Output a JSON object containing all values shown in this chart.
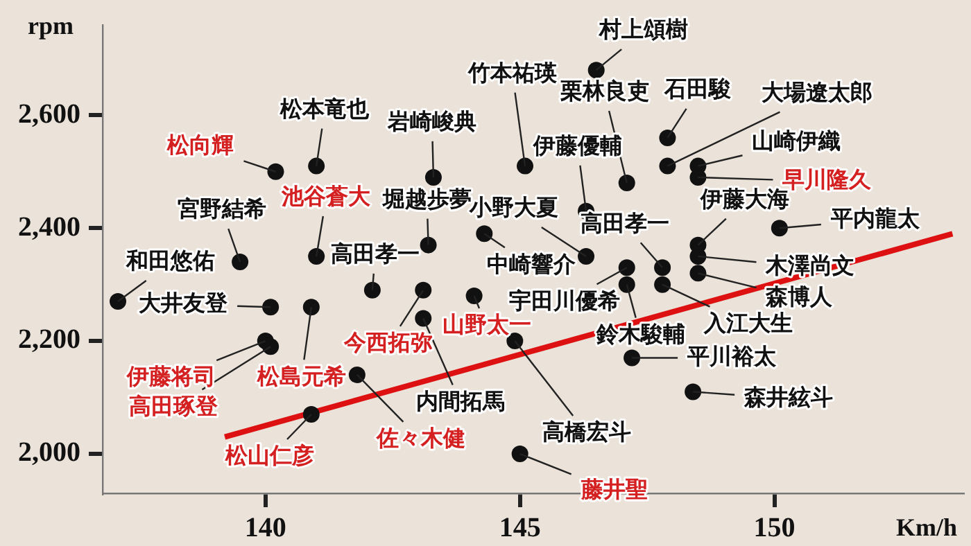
{
  "chart_data": {
    "type": "scatter",
    "xlabel": "Km/h",
    "ylabel": "rpm",
    "xlim": [
      136.8,
      153.7
    ],
    "ylim": [
      1930,
      2760
    ],
    "xticks": [
      140,
      145,
      150
    ],
    "yticks": [
      {
        "value": 2000,
        "label": "2,000"
      },
      {
        "value": 2200,
        "label": "2,200"
      },
      {
        "value": 2400,
        "label": "2,400"
      },
      {
        "value": 2600,
        "label": "2,600"
      }
    ],
    "marker": "circle",
    "series": [
      {
        "color": "#111111",
        "x": [
          137.1,
          139.5,
          141.0,
          140.1,
          142.1,
          143.2,
          143.3,
          143.1,
          144.9,
          144.3,
          146.3,
          145.1,
          146.3,
          147.1,
          146.5,
          147.1,
          147.1,
          147.2,
          147.8,
          147.8,
          147.9,
          147.9,
          148.5,
          148.5,
          148.5,
          148.5,
          150.1,
          148.4
        ],
        "values": [
          2270,
          2340,
          2510,
          2260,
          2290,
          2370,
          2490,
          2240,
          2200,
          2390,
          2350,
          2510,
          2430,
          2480,
          2680,
          2330,
          2300,
          2170,
          2330,
          2300,
          2560,
          2510,
          2510,
          2370,
          2350,
          2320,
          2400,
          2110
        ],
        "value_labels": [
          "和田悠佑",
          "宮野結希",
          "松本竜也",
          "大井友登",
          "高田孝一",
          "堀越歩夢",
          "岩崎峻典",
          "内間拓馬",
          "高橋宏斗",
          "中崎響介",
          "小野大夏",
          "竹本祐瑛",
          "伊藤優輔",
          "栗林良吏",
          "村上頌樹",
          "宇田川優希",
          "鈴木駿輔",
          "平川裕太",
          "高田孝一",
          "入江大生",
          "石田駿",
          "大場遼太郎",
          "山崎伊織",
          "伊藤大海",
          "木澤尚文",
          "森博人",
          "平内龍太",
          "森井絃斗"
        ]
      },
      {
        "color": "#111111",
        "x": [
          140.2,
          141.0,
          140.9,
          140.0,
          140.1,
          140.9,
          141.8,
          143.1,
          144.1,
          145.0,
          148.5
        ],
        "values": [
          2500,
          2350,
          2260,
          2200,
          2190,
          2070,
          2140,
          2290,
          2280,
          2000,
          2490
        ],
        "value_labels": [
          "松向輝",
          "池谷蒼大",
          "松島元希",
          "伊藤将司",
          "高田琢登",
          "松山仁彦",
          "佐々木健",
          "今西拓弥",
          "山野太一",
          "藤井聖",
          "早川隆久"
        ]
      },
      {
        "type": "line",
        "color": "#dd1111",
        "marker": "none",
        "x": [
          139.2,
          153.5
        ],
        "values": [
          2030,
          2390
        ]
      }
    ]
  }
}
